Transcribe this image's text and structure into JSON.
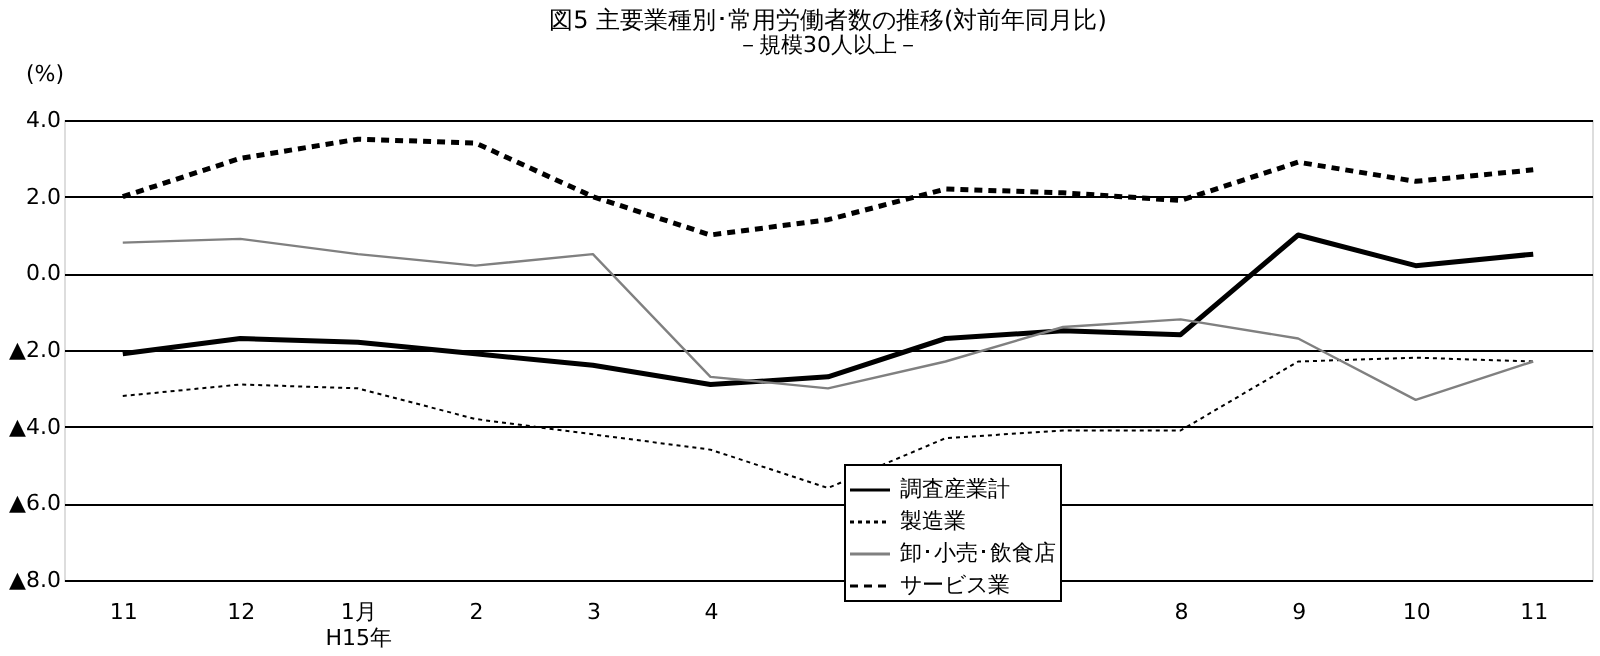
{
  "chart_data": {
    "type": "line",
    "title": "図5  主要業種別･常用労働者数の推移(対前年同月比)",
    "subtitle": "－規模30人以上－",
    "ylabel": "(%)",
    "categories": [
      "11",
      "12",
      "1月\nH15年",
      "2",
      "3",
      "4",
      null,
      null,
      null,
      "8",
      "9",
      "10",
      "11"
    ],
    "series": [
      {
        "name": "調査産業計",
        "color": "#000000",
        "line_style": "solid",
        "values": [
          -2.1,
          -1.7,
          -1.8,
          -2.1,
          -2.4,
          -2.9,
          -2.7,
          -1.7,
          -1.5,
          -1.6,
          1.0,
          0.2,
          0.5
        ]
      },
      {
        "name": "製造業",
        "color": "#000000",
        "line_style": "dotted",
        "values": [
          -3.2,
          -2.9,
          -3.0,
          -3.8,
          -4.2,
          -4.6,
          -5.6,
          -4.3,
          -4.1,
          -4.1,
          -2.3,
          -2.2,
          -2.3
        ]
      },
      {
        "name": "卸･小売･飲食店",
        "color": "#808080",
        "line_style": "solid",
        "values": [
          0.8,
          0.9,
          0.5,
          0.2,
          0.5,
          -2.7,
          -3.0,
          -2.3,
          -1.4,
          -1.2,
          -1.7,
          -3.3,
          -2.3
        ]
      },
      {
        "name": "サービス業",
        "color": "#000000",
        "line_style": "dashed",
        "values": [
          2.0,
          3.0,
          3.5,
          3.4,
          2.0,
          1.0,
          1.4,
          2.2,
          2.1,
          1.9,
          2.9,
          2.4,
          2.7
        ]
      }
    ],
    "ylim": [
      -8,
      4
    ],
    "yticks": [
      {
        "value": -8,
        "label": "▲8.0"
      },
      {
        "value": -6,
        "label": "▲6.0"
      },
      {
        "value": -4,
        "label": "▲4.0"
      },
      {
        "value": -2,
        "label": "▲2.0"
      },
      {
        "value": 0,
        "label": "0.0"
      },
      {
        "value": 2,
        "label": "2.0"
      },
      {
        "value": 4,
        "label": "4.0"
      }
    ],
    "grid": "y",
    "legend": "bottom",
    "marker": "none"
  }
}
